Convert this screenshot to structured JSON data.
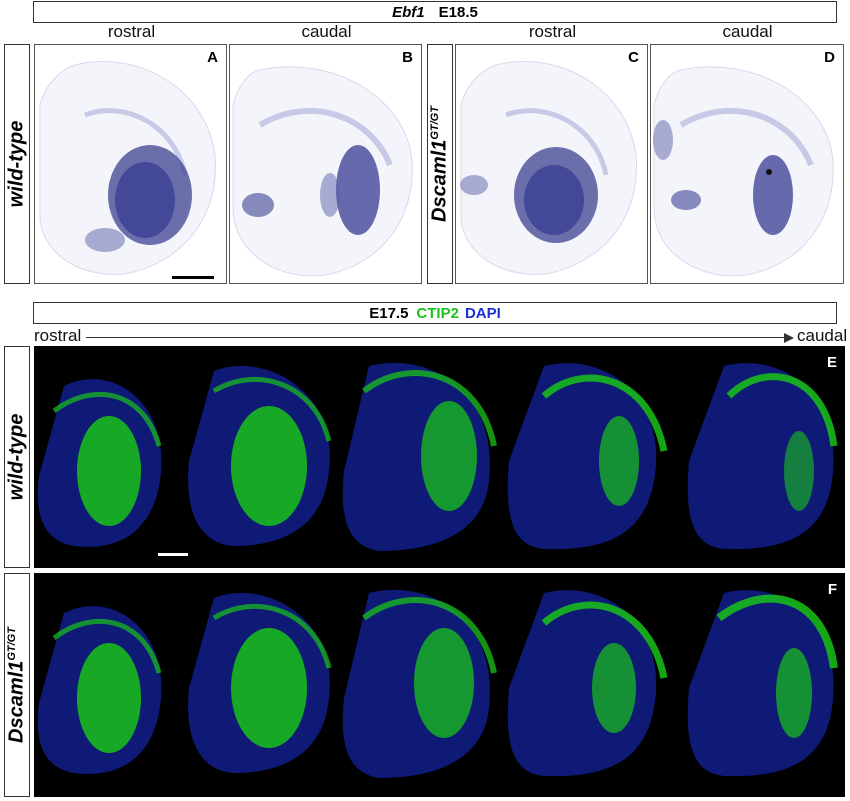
{
  "top": {
    "title_gene": "Ebf1",
    "title_stage": "E18.5",
    "col_labels": [
      "rostral",
      "caudal",
      "rostral",
      "caudal"
    ],
    "row_label_wt": "wild-type",
    "row_label_mut_main": "Dscaml1",
    "row_label_mut_sup": "GT/GT",
    "panel_letters": [
      "A",
      "B",
      "C",
      "D"
    ]
  },
  "bottom": {
    "title_stage": "E17.5",
    "title_marker1": "CTIP2",
    "title_marker2": "DAPI",
    "axis_start": "rostral",
    "axis_end": "caudal",
    "row_label_wt": "wild-type",
    "row_label_mut_main": "Dscaml1",
    "row_label_mut_sup": "GT/GT",
    "panel_letters": [
      "E",
      "F"
    ]
  },
  "colors": {
    "ctip2": "#19c319",
    "dapi": "#1a2fd6",
    "ish_stain": "#2a2f8a"
  }
}
